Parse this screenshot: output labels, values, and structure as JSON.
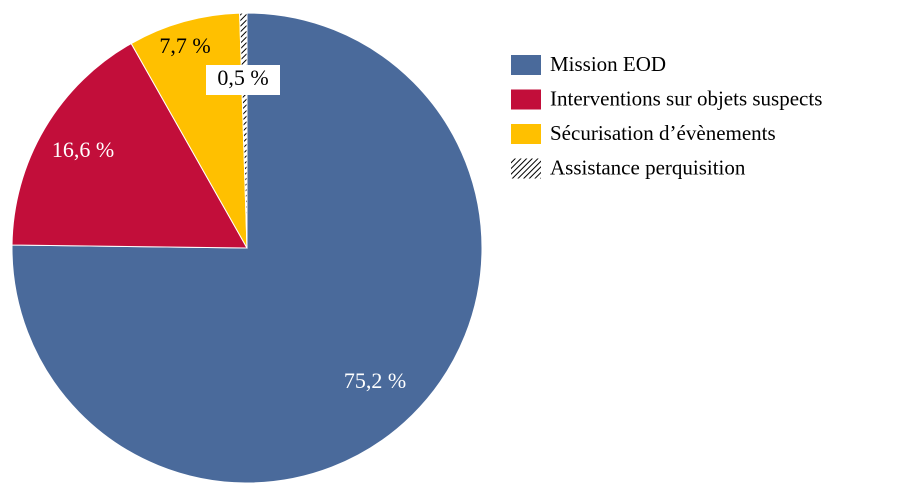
{
  "chart_data": {
    "type": "pie",
    "categories": [
      "Mission EOD",
      "Interventions sur objets suspects",
      "Sécurisation d’évènements",
      "Assistance perquisition"
    ],
    "values": [
      75.2,
      16.6,
      7.7,
      0.5
    ],
    "value_labels": [
      "75,2 %",
      "16,6 %",
      "7,7 %",
      "0,5 %"
    ],
    "colors": [
      "#4a6a9b",
      "#c20e3a",
      "#ffc000",
      "#000000"
    ],
    "hatched": [
      false,
      false,
      false,
      true
    ],
    "legend": "right"
  }
}
